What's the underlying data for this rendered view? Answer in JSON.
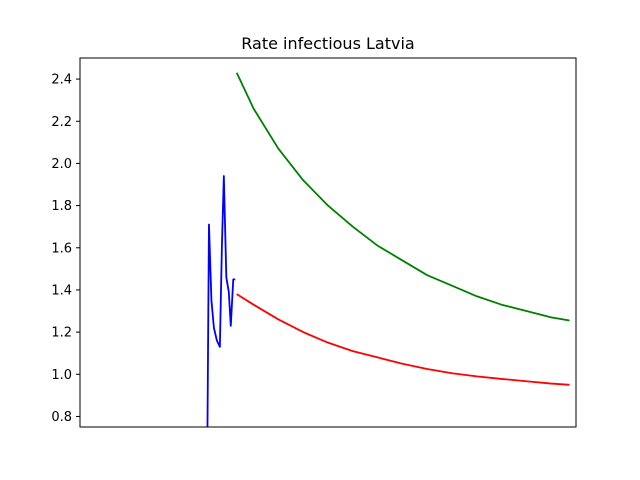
{
  "chart_data": {
    "type": "line",
    "title": "Rate infectious Latvia",
    "xlabel": "",
    "ylabel": "",
    "xlim": [
      0,
      100
    ],
    "ylim": [
      0.75,
      2.5
    ],
    "yticks": [
      0.8,
      1.0,
      1.2,
      1.4,
      1.6,
      1.8,
      2.0,
      2.2,
      2.4
    ],
    "ytick_labels": [
      "0.8",
      "1.0",
      "1.2",
      "1.4",
      "1.6",
      "1.8",
      "2.0",
      "2.2",
      "2.4"
    ],
    "show_x_ticks": false,
    "grid": false,
    "series": [
      {
        "color": "#0000ff",
        "x": [
          25.7,
          26.0,
          26.5,
          27.0,
          27.6,
          28.2,
          28.6,
          29.0,
          29.5,
          30.0,
          30.4,
          30.9,
          31.3
        ],
        "y": [
          0.75,
          1.71,
          1.35,
          1.22,
          1.16,
          1.13,
          1.6,
          1.94,
          1.46,
          1.39,
          1.23,
          1.45,
          1.45
        ]
      },
      {
        "color": "#ff0000",
        "x": [
          31.6,
          35,
          40,
          45,
          50,
          55,
          60,
          65,
          70,
          75,
          80,
          85,
          90,
          95,
          98.7
        ],
        "y": [
          1.38,
          1.33,
          1.26,
          1.2,
          1.15,
          1.11,
          1.08,
          1.05,
          1.025,
          1.005,
          0.99,
          0.978,
          0.967,
          0.956,
          0.95
        ]
      },
      {
        "color": "#008000",
        "x": [
          31.6,
          35,
          40,
          45,
          50,
          55,
          60,
          65,
          70,
          75,
          80,
          85,
          90,
          95,
          98.7
        ],
        "y": [
          2.43,
          2.26,
          2.07,
          1.92,
          1.8,
          1.7,
          1.61,
          1.54,
          1.47,
          1.42,
          1.37,
          1.33,
          1.3,
          1.27,
          1.255
        ]
      }
    ]
  }
}
